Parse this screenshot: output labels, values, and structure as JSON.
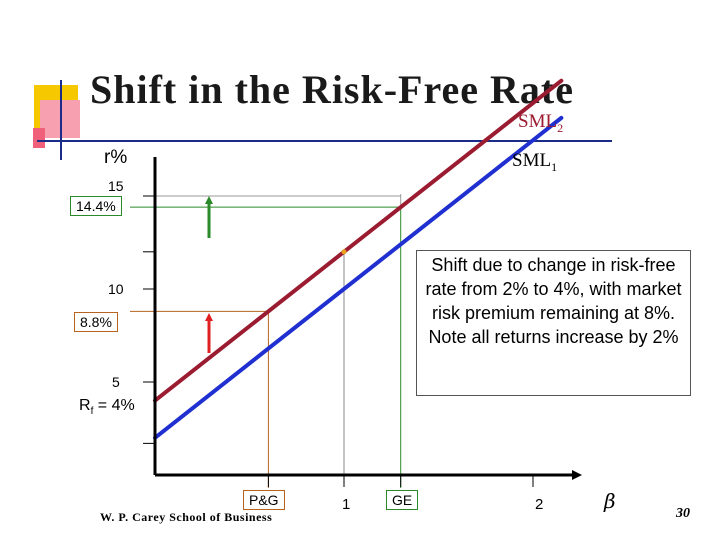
{
  "slide": {
    "title": "Shift in the Risk-Free Rate",
    "footer": "W. P. Carey School of Business",
    "page_number": "30",
    "note": "Shift due to change in risk-free rate from 2% to 4%, with market risk premium remaining at 8%. Note all returns increase by 2%"
  },
  "colors": {
    "sml2": "#9b1b30",
    "sml1": "#1f2fd0",
    "green": "#2a8a2a",
    "red": "#e02020",
    "brown": "#b5651d",
    "deco_yellow": "#f5c800",
    "deco_red": "#f0607a",
    "deco_blue": "#1a2b8a"
  },
  "chart_data": {
    "type": "line",
    "ylabel": "r%",
    "xlabel_symbol": "β",
    "y_ticks": [
      "15",
      "10",
      "5"
    ],
    "x_ticks": [
      "1",
      "2"
    ],
    "annotations": {
      "y_14_4": "14.4%",
      "y_8_8": "8.8%",
      "rf": "Rf = 4%",
      "pg": "P&G",
      "ge": "GE"
    },
    "series": [
      {
        "name": "SML2",
        "label_main": "SML",
        "label_sub": "2",
        "points": [
          [
            0,
            4
          ],
          [
            2.15,
            21.2
          ]
        ]
      },
      {
        "name": "SML1",
        "label_main": "SML",
        "label_sub": "1",
        "points": [
          [
            0,
            2
          ],
          [
            2.15,
            19.2
          ]
        ]
      }
    ],
    "stocks": [
      {
        "name": "P&G",
        "beta": 0.6,
        "return_new": 8.8
      },
      {
        "name": "GE",
        "beta": 1.3,
        "return_new": 14.4
      }
    ],
    "market": {
      "beta": 1.0,
      "return": 12
    },
    "xlim": [
      0,
      2.5
    ],
    "ylim": [
      0,
      18
    ]
  }
}
